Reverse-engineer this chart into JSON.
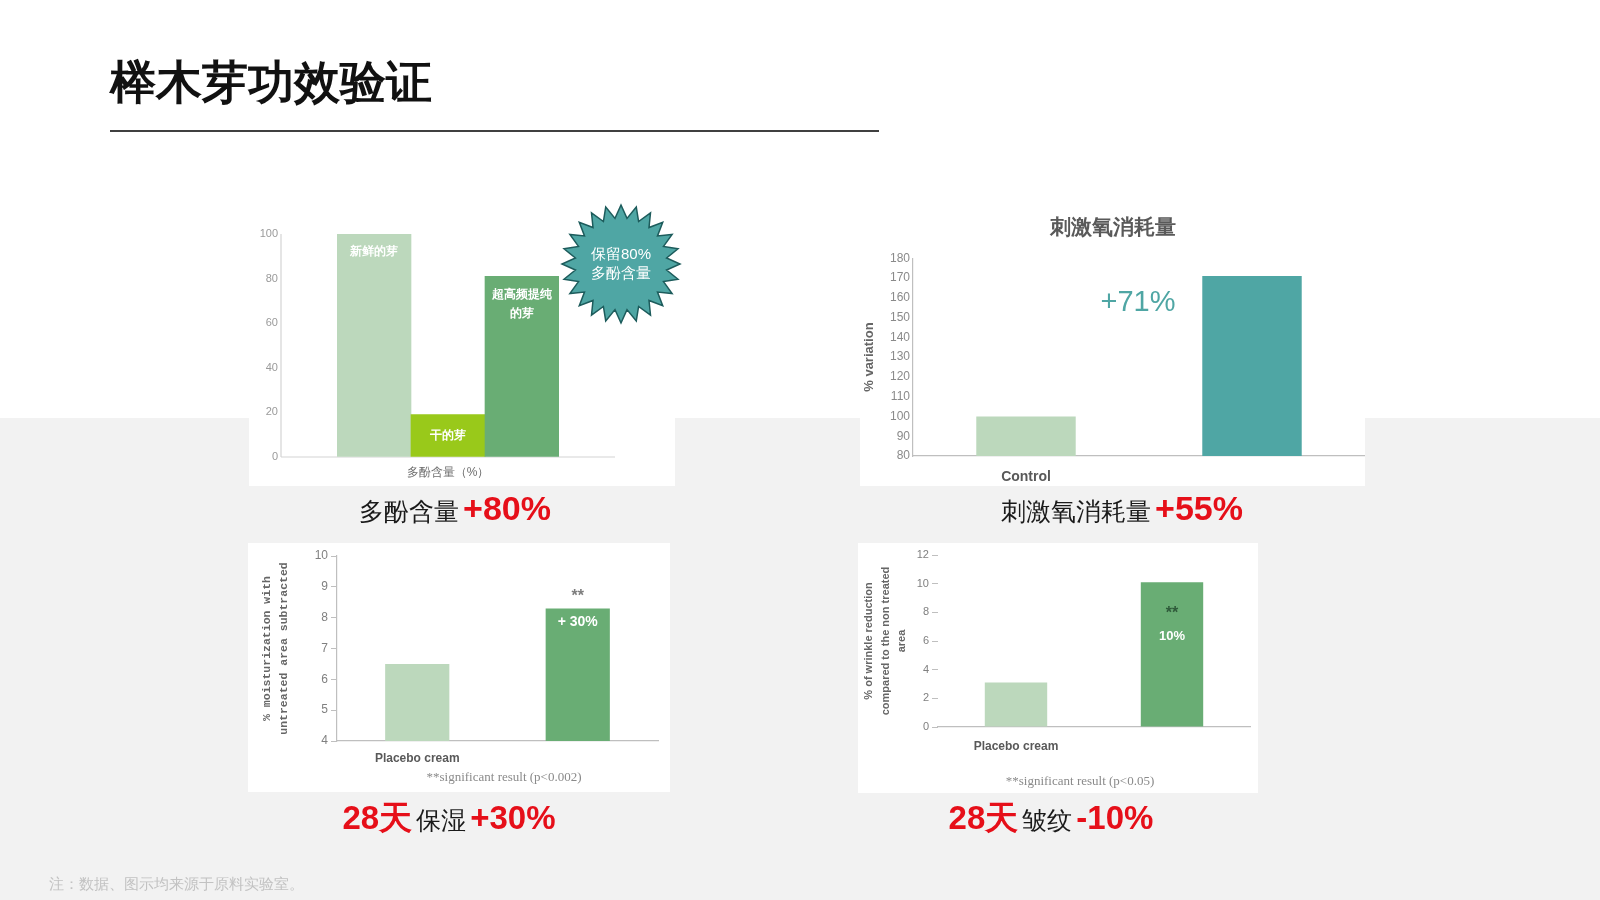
{
  "chart_data": [
    {
      "type": "other",
      "title": "榉木芽功效验证"
    },
    {
      "type": "bar",
      "xlabel": "多酚含量（%）",
      "categories": [
        "新鲜的芽",
        "干的芽",
        "超高频提纯的芽"
      ],
      "values": [
        100,
        19,
        81
      ],
      "colors": [
        "#bcd8bc",
        "#99c91a",
        "#69ad74"
      ],
      "ylim": [
        0,
        100
      ],
      "yticks": [
        0,
        20,
        40,
        60,
        80,
        100
      ],
      "tick_labels": "y",
      "annotations": [
        "保留80% 多酚含量",
        "多酚含量",
        "+80%"
      ]
    },
    {
      "type": "bar",
      "title": "刺激氧消耗量",
      "ylabel": "% variation",
      "categories": [
        "Control",
        null
      ],
      "values": [
        100,
        171
      ],
      "colors": [
        "#bcd8bc",
        "#4fa6a4"
      ],
      "ylim": [
        80,
        180
      ],
      "yticks": [
        80,
        90,
        100,
        110,
        120,
        130,
        140,
        150,
        160,
        170,
        180
      ],
      "annotations": [
        "+71%",
        "刺激氧消耗量",
        "+55%"
      ]
    },
    {
      "type": "bar",
      "ylabel": "% moisturization with untreated area subtracted",
      "categories": [
        "Placebo cream",
        null
      ],
      "values": [
        6.5,
        8.3
      ],
      "colors": [
        "#bcd8bc",
        "#69ad74"
      ],
      "ylim": [
        4,
        10
      ],
      "yticks": [
        4,
        5,
        6,
        7,
        8,
        9,
        10
      ],
      "annotations": [
        "**",
        "+ 30%",
        "**significant result (p<0.002)",
        "28天",
        "保湿",
        "+30%"
      ]
    },
    {
      "type": "bar",
      "ylabel": "% of wrinkle reduction compared to the non treated area",
      "categories": [
        "Placebo cream",
        null
      ],
      "values": [
        3.1,
        10.1
      ],
      "colors": [
        "#bcd8bc",
        "#69ad74"
      ],
      "ylim": [
        0,
        12
      ],
      "yticks": [
        0,
        2,
        4,
        6,
        8,
        10,
        12
      ],
      "annotations": [
        "**",
        "10%",
        "**significant result (p<0.05)",
        "28天",
        "皱纹",
        "-10%"
      ]
    },
    {
      "type": "other",
      "annotations": [
        "注：数据、图示均来源于原料实验室。"
      ]
    }
  ]
}
